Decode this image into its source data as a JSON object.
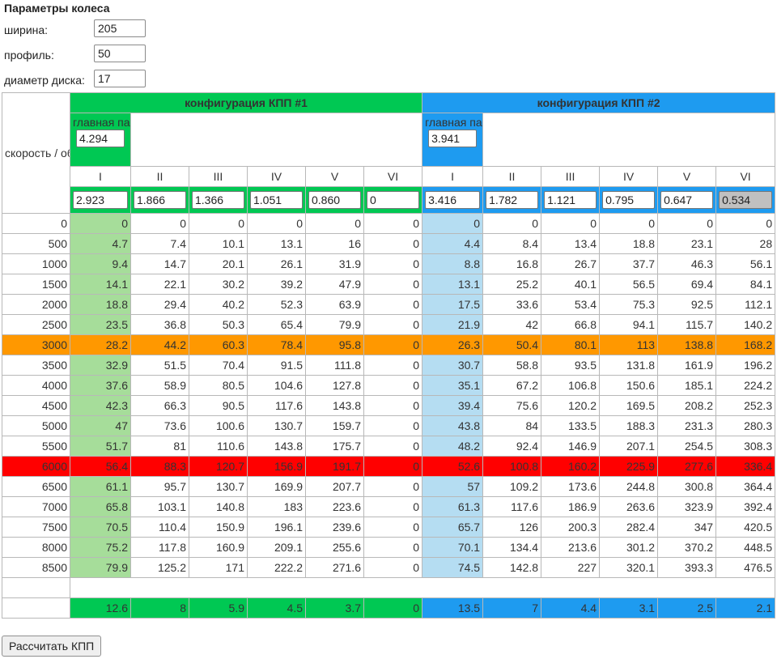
{
  "wheel": {
    "title": "Параметры колеса",
    "width_label": "ширина:",
    "width_value": "205",
    "profile_label": "профиль:",
    "profile_value": "50",
    "diameter_label": "диаметр диска:",
    "diameter_value": "17"
  },
  "table": {
    "speed_label": "скорость / обороты",
    "config1": {
      "title": "конфигурация КПП #1",
      "main_pair_label": "главная пара",
      "main_pair_value": "4.294",
      "gears": [
        "I",
        "II",
        "III",
        "IV",
        "V",
        "VI"
      ],
      "ratios": [
        "2.923",
        "1.866",
        "1.366",
        "1.051",
        "0.860",
        "0"
      ],
      "summary": [
        "12.6",
        "8",
        "5.9",
        "4.5",
        "3.7",
        "0"
      ]
    },
    "config2": {
      "title": "конфигурация КПП #2",
      "main_pair_label": "главная пара",
      "main_pair_value": "3.941",
      "gears": [
        "I",
        "II",
        "III",
        "IV",
        "V",
        "VI"
      ],
      "ratios": [
        "3.416",
        "1.782",
        "1.121",
        "0.795",
        "0.647",
        "0.534"
      ],
      "summary": [
        "13.5",
        "7",
        "4.4",
        "3.1",
        "2.5",
        "2.1"
      ]
    },
    "rows": [
      {
        "rpm": "0",
        "c1": [
          "0",
          "0",
          "0",
          "0",
          "0",
          "0"
        ],
        "c2": [
          "0",
          "0",
          "0",
          "0",
          "0",
          "0"
        ]
      },
      {
        "rpm": "500",
        "c1": [
          "4.7",
          "7.4",
          "10.1",
          "13.1",
          "16",
          "0"
        ],
        "c2": [
          "4.4",
          "8.4",
          "13.4",
          "18.8",
          "23.1",
          "28"
        ]
      },
      {
        "rpm": "1000",
        "c1": [
          "9.4",
          "14.7",
          "20.1",
          "26.1",
          "31.9",
          "0"
        ],
        "c2": [
          "8.8",
          "16.8",
          "26.7",
          "37.7",
          "46.3",
          "56.1"
        ]
      },
      {
        "rpm": "1500",
        "c1": [
          "14.1",
          "22.1",
          "30.2",
          "39.2",
          "47.9",
          "0"
        ],
        "c2": [
          "13.1",
          "25.2",
          "40.1",
          "56.5",
          "69.4",
          "84.1"
        ]
      },
      {
        "rpm": "2000",
        "c1": [
          "18.8",
          "29.4",
          "40.2",
          "52.3",
          "63.9",
          "0"
        ],
        "c2": [
          "17.5",
          "33.6",
          "53.4",
          "75.3",
          "92.5",
          "112.1"
        ]
      },
      {
        "rpm": "2500",
        "c1": [
          "23.5",
          "36.8",
          "50.3",
          "65.4",
          "79.9",
          "0"
        ],
        "c2": [
          "21.9",
          "42",
          "66.8",
          "94.1",
          "115.7",
          "140.2"
        ]
      },
      {
        "rpm": "3000",
        "highlight": "orange",
        "c1": [
          "28.2",
          "44.2",
          "60.3",
          "78.4",
          "95.8",
          "0"
        ],
        "c2": [
          "26.3",
          "50.4",
          "80.1",
          "113",
          "138.8",
          "168.2"
        ]
      },
      {
        "rpm": "3500",
        "c1": [
          "32.9",
          "51.5",
          "70.4",
          "91.5",
          "111.8",
          "0"
        ],
        "c2": [
          "30.7",
          "58.8",
          "93.5",
          "131.8",
          "161.9",
          "196.2"
        ]
      },
      {
        "rpm": "4000",
        "c1": [
          "37.6",
          "58.9",
          "80.5",
          "104.6",
          "127.8",
          "0"
        ],
        "c2": [
          "35.1",
          "67.2",
          "106.8",
          "150.6",
          "185.1",
          "224.2"
        ]
      },
      {
        "rpm": "4500",
        "c1": [
          "42.3",
          "66.3",
          "90.5",
          "117.6",
          "143.8",
          "0"
        ],
        "c2": [
          "39.4",
          "75.6",
          "120.2",
          "169.5",
          "208.2",
          "252.3"
        ]
      },
      {
        "rpm": "5000",
        "c1": [
          "47",
          "73.6",
          "100.6",
          "130.7",
          "159.7",
          "0"
        ],
        "c2": [
          "43.8",
          "84",
          "133.5",
          "188.3",
          "231.3",
          "280.3"
        ]
      },
      {
        "rpm": "5500",
        "c1": [
          "51.7",
          "81",
          "110.6",
          "143.8",
          "175.7",
          "0"
        ],
        "c2": [
          "48.2",
          "92.4",
          "146.9",
          "207.1",
          "254.5",
          "308.3"
        ]
      },
      {
        "rpm": "6000",
        "highlight": "red",
        "c1": [
          "56.4",
          "88.3",
          "120.7",
          "156.9",
          "191.7",
          "0"
        ],
        "c2": [
          "52.6",
          "100.8",
          "160.2",
          "225.9",
          "277.6",
          "336.4"
        ]
      },
      {
        "rpm": "6500",
        "c1": [
          "61.1",
          "95.7",
          "130.7",
          "169.9",
          "207.7",
          "0"
        ],
        "c2": [
          "57",
          "109.2",
          "173.6",
          "244.8",
          "300.8",
          "364.4"
        ]
      },
      {
        "rpm": "7000",
        "c1": [
          "65.8",
          "103.1",
          "140.8",
          "183",
          "223.6",
          "0"
        ],
        "c2": [
          "61.3",
          "117.6",
          "186.9",
          "263.6",
          "323.9",
          "392.4"
        ]
      },
      {
        "rpm": "7500",
        "c1": [
          "70.5",
          "110.4",
          "150.9",
          "196.1",
          "239.6",
          "0"
        ],
        "c2": [
          "65.7",
          "126",
          "200.3",
          "282.4",
          "347",
          "420.5"
        ]
      },
      {
        "rpm": "8000",
        "c1": [
          "75.2",
          "117.8",
          "160.9",
          "209.1",
          "255.6",
          "0"
        ],
        "c2": [
          "70.1",
          "134.4",
          "213.6",
          "301.2",
          "370.2",
          "448.5"
        ]
      },
      {
        "rpm": "8500",
        "c1": [
          "79.9",
          "125.2",
          "171",
          "222.2",
          "271.6",
          "0"
        ],
        "c2": [
          "74.5",
          "142.8",
          "227",
          "320.1",
          "393.3",
          "476.5"
        ]
      }
    ]
  },
  "button": {
    "calculate_label": "Рассчитать КПП"
  }
}
